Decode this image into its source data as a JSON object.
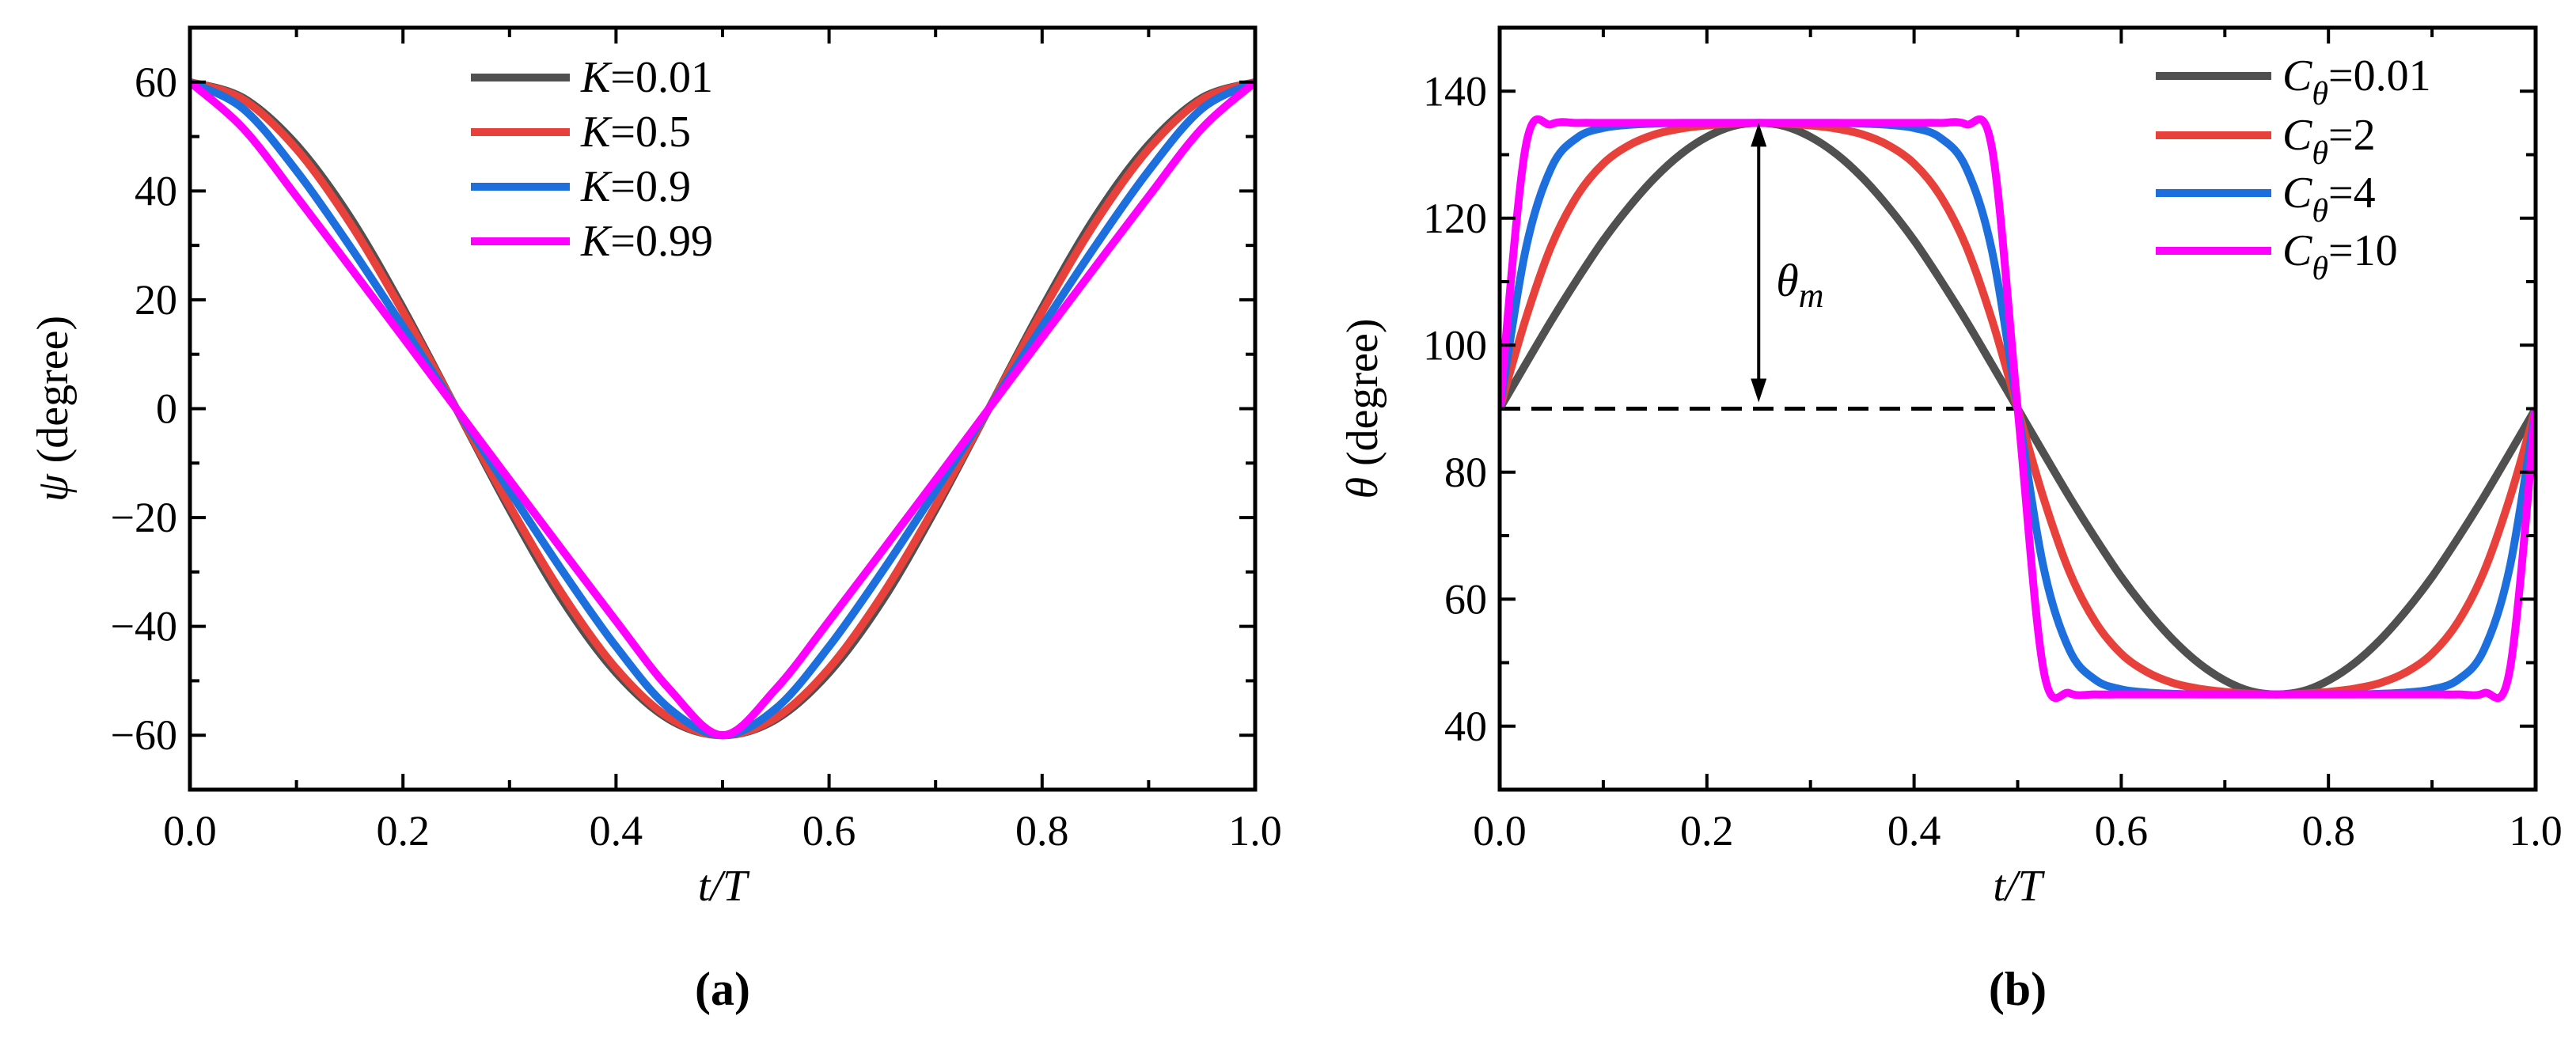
{
  "chart_data": [
    {
      "type": "line",
      "panel_label": "(a)",
      "xlabel": "t/T",
      "ylabel": {
        "symbol": "ψ",
        "text": " (degree)"
      },
      "xlim": [
        0,
        1
      ],
      "ylim": [
        -70,
        70
      ],
      "xticks": [
        "0.0",
        "0.2",
        "0.4",
        "0.6",
        "0.8",
        "1.0"
      ],
      "yticks": [
        "−60",
        "−40",
        "−20",
        "0",
        "20",
        "40",
        "60"
      ],
      "ytick_values": [
        -60,
        -40,
        -20,
        0,
        20,
        40,
        60
      ],
      "legend_position": "top-center",
      "x": [
        0,
        0.05,
        0.1,
        0.15,
        0.2,
        0.25,
        0.3,
        0.35,
        0.4,
        0.45,
        0.5,
        0.55,
        0.6,
        0.65,
        0.7,
        0.75,
        0.8,
        0.85,
        0.9,
        0.95,
        1
      ],
      "series": [
        {
          "symbol": "K",
          "sub": "",
          "value": "=0.01",
          "color": "#505050",
          "values": [
            60,
            57.1,
            48.5,
            35.3,
            18.5,
            0,
            -18.5,
            -35.3,
            -48.5,
            -57.1,
            -60,
            -57.1,
            -48.5,
            -35.3,
            -18.5,
            0,
            18.5,
            35.3,
            48.5,
            57.1,
            60
          ]
        },
        {
          "symbol": "K",
          "sub": "",
          "value": "=0.5",
          "color": "#e8413c",
          "values": [
            60,
            56.8,
            47.7,
            34.2,
            17.8,
            0,
            -17.8,
            -34.2,
            -47.7,
            -56.8,
            -60,
            -56.8,
            -47.7,
            -34.2,
            -17.8,
            0,
            17.8,
            34.2,
            47.7,
            56.8,
            60
          ]
        },
        {
          "symbol": "K",
          "sub": "",
          "value": "=0.9",
          "color": "#1e6fde",
          "values": [
            60,
            55.1,
            43.7,
            29.9,
            15.1,
            0,
            -15.1,
            -29.9,
            -43.7,
            -55.1,
            -60,
            -55.1,
            -43.7,
            -29.9,
            -15.1,
            0,
            15.1,
            29.9,
            43.7,
            55.1,
            60
          ]
        },
        {
          "symbol": "K",
          "sub": "",
          "value": "=0.99",
          "color": "#ff00ff",
          "values": [
            60,
            51.5,
            39.0,
            26.1,
            13.1,
            0,
            -13.1,
            -26.1,
            -39.0,
            -51.5,
            -60,
            -51.5,
            -39.0,
            -26.1,
            -13.1,
            0,
            13.1,
            26.1,
            39.0,
            51.5,
            60
          ]
        }
      ]
    },
    {
      "type": "line",
      "panel_label": "(b)",
      "xlabel": "t/T",
      "ylabel": {
        "symbol": "θ",
        "text": " (degree)"
      },
      "xlim": [
        0,
        1
      ],
      "ylim": [
        30,
        150
      ],
      "xticks": [
        "0.0",
        "0.2",
        "0.4",
        "0.6",
        "0.8",
        "1.0"
      ],
      "yticks": [
        "40",
        "60",
        "80",
        "100",
        "120",
        "140"
      ],
      "ytick_values": [
        40,
        60,
        80,
        100,
        120,
        140
      ],
      "legend_position": "top-right",
      "annotation": {
        "symbol": "θ",
        "sub": "m",
        "x": 0.25,
        "from": 90,
        "to": 135
      },
      "reference_line": {
        "y": 90,
        "x_from": 0,
        "x_to": 0.5,
        "style": "dashed"
      },
      "x": [
        0,
        0.025,
        0.05,
        0.075,
        0.1,
        0.125,
        0.15,
        0.175,
        0.2,
        0.225,
        0.25,
        0.275,
        0.3,
        0.325,
        0.35,
        0.375,
        0.4,
        0.425,
        0.45,
        0.475,
        0.5,
        0.525,
        0.55,
        0.575,
        0.6,
        0.625,
        0.65,
        0.675,
        0.7,
        0.725,
        0.75,
        0.775,
        0.8,
        0.825,
        0.85,
        0.875,
        0.9,
        0.925,
        0.95,
        0.975,
        1
      ],
      "series": [
        {
          "symbol": "C",
          "sub": "θ",
          "value": "=0.01",
          "color": "#505050",
          "values": [
            90,
            97.0,
            103.9,
            110.4,
            116.5,
            121.8,
            126.4,
            130.1,
            132.8,
            134.5,
            135,
            134.5,
            132.8,
            130.1,
            126.4,
            121.8,
            116.5,
            110.4,
            103.9,
            97.0,
            90,
            83.0,
            76.1,
            69.6,
            63.5,
            58.2,
            53.6,
            49.9,
            47.2,
            45.5,
            45,
            45.5,
            47.2,
            49.9,
            53.6,
            58.2,
            63.5,
            69.6,
            76.1,
            83.0,
            90
          ]
        },
        {
          "symbol": "C",
          "sub": "θ",
          "value": "=2",
          "color": "#e8413c",
          "values": [
            90,
            104.1,
            115.7,
            123.6,
            128.6,
            131.5,
            133.2,
            134.1,
            134.6,
            134.9,
            135,
            134.9,
            134.6,
            134.1,
            133.2,
            131.5,
            128.6,
            123.6,
            115.7,
            104.1,
            90,
            75.9,
            64.3,
            56.4,
            51.4,
            48.5,
            46.8,
            45.9,
            45.4,
            45.1,
            45,
            45.1,
            45.4,
            45.9,
            46.8,
            48.5,
            51.4,
            56.4,
            64.3,
            75.9,
            90
          ]
        },
        {
          "symbol": "C",
          "sub": "θ",
          "value": "=4",
          "color": "#1e6fde",
          "values": [
            90,
            115.0,
            128.0,
            132.7,
            134.2,
            134.7,
            134.9,
            135,
            135,
            135,
            135,
            135,
            135,
            135,
            134.9,
            134.7,
            134.2,
            132.7,
            128.0,
            115.0,
            90,
            65.0,
            52.0,
            47.3,
            45.8,
            45.3,
            45.1,
            45,
            45,
            45,
            45,
            45,
            45,
            45,
            45.1,
            45.3,
            45.8,
            47.3,
            52.0,
            65.0,
            90
          ]
        },
        {
          "symbol": "C",
          "sub": "θ",
          "value": "=10",
          "color": "#ff00ff",
          "values": [
            90,
            131.2,
            134.8,
            135,
            135,
            135,
            135,
            135,
            135,
            135,
            135,
            135,
            135,
            135,
            135,
            135,
            135,
            135,
            134.8,
            131.2,
            90,
            48.8,
            45.2,
            45,
            45,
            45,
            45,
            45,
            45,
            45,
            45,
            45,
            45,
            45,
            45,
            45,
            45,
            45,
            45.2,
            48.8,
            90
          ]
        }
      ]
    }
  ]
}
